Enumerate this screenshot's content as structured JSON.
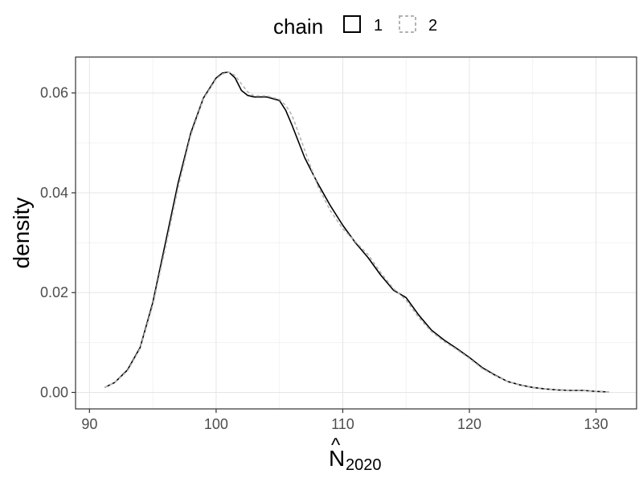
{
  "chart_data": {
    "type": "line",
    "title": "",
    "xlabel": "N̂2020",
    "xlabel_main": "N",
    "xlabel_hat": "^",
    "xlabel_sub": "2020",
    "ylabel": "density",
    "xlim": [
      88.9,
      133.2
    ],
    "ylim": [
      -0.0033,
      0.0672
    ],
    "x_ticks": [
      90,
      100,
      110,
      120,
      130
    ],
    "x_tick_labels": [
      "90",
      "100",
      "110",
      "120",
      "130"
    ],
    "y_ticks": [
      0.0,
      0.02,
      0.04,
      0.06
    ],
    "y_tick_labels": [
      "0.00",
      "0.02",
      "0.04",
      "0.06"
    ],
    "grid": true,
    "legend": {
      "title": "chain",
      "placement": "top",
      "entries": [
        {
          "label": "1",
          "color": "#000000",
          "linetype": "solid"
        },
        {
          "label": "2",
          "color": "#b3b3b3",
          "linetype": "dashed"
        }
      ]
    },
    "series": [
      {
        "name": "1",
        "color": "#000000",
        "linetype": "solid",
        "x": [
          91.2,
          92,
          93,
          94,
          95,
          96,
          97,
          98,
          99,
          100,
          100.5,
          101,
          101.5,
          102,
          102.5,
          103,
          104,
          105,
          105.5,
          106,
          107,
          108,
          109,
          110,
          111,
          112,
          113,
          114,
          115,
          116,
          117,
          118,
          119,
          120,
          121,
          122,
          123,
          124,
          125,
          126,
          127,
          128,
          129,
          130,
          131
        ],
        "y": [
          0.001,
          0.002,
          0.0045,
          0.009,
          0.018,
          0.03,
          0.042,
          0.052,
          0.059,
          0.063,
          0.064,
          0.0642,
          0.063,
          0.0605,
          0.0595,
          0.0592,
          0.0592,
          0.0585,
          0.0565,
          0.0535,
          0.047,
          0.042,
          0.0375,
          0.0335,
          0.03,
          0.027,
          0.0235,
          0.0205,
          0.019,
          0.0155,
          0.0125,
          0.0105,
          0.0088,
          0.007,
          0.005,
          0.0035,
          0.0022,
          0.0015,
          0.001,
          0.0007,
          0.0005,
          0.0004,
          0.0004,
          0.0002,
          0.0001
        ]
      },
      {
        "name": "2",
        "color": "#b3b3b3",
        "linetype": "dashed",
        "x": [
          91.2,
          92,
          93,
          94,
          95,
          96,
          97,
          98,
          99,
          100,
          100.5,
          101,
          101.5,
          102,
          102.5,
          103,
          104,
          105,
          105.5,
          106,
          107,
          108,
          109,
          110,
          111,
          112,
          113,
          114,
          115,
          116,
          117,
          118,
          119,
          120,
          121,
          122,
          123,
          124,
          125,
          126,
          127,
          128,
          129,
          130,
          131
        ],
        "y": [
          0.001,
          0.002,
          0.0043,
          0.0088,
          0.0175,
          0.029,
          0.041,
          0.0515,
          0.0588,
          0.0628,
          0.0638,
          0.0642,
          0.0635,
          0.0618,
          0.0602,
          0.0594,
          0.0594,
          0.0587,
          0.0575,
          0.0555,
          0.0485,
          0.0415,
          0.0365,
          0.0328,
          0.0302,
          0.0276,
          0.024,
          0.0208,
          0.0185,
          0.015,
          0.0122,
          0.0102,
          0.0086,
          0.0068,
          0.0048,
          0.0034,
          0.0022,
          0.0015,
          0.001,
          0.0007,
          0.0005,
          0.0004,
          0.0004,
          0.0002,
          0.0001
        ]
      }
    ]
  }
}
